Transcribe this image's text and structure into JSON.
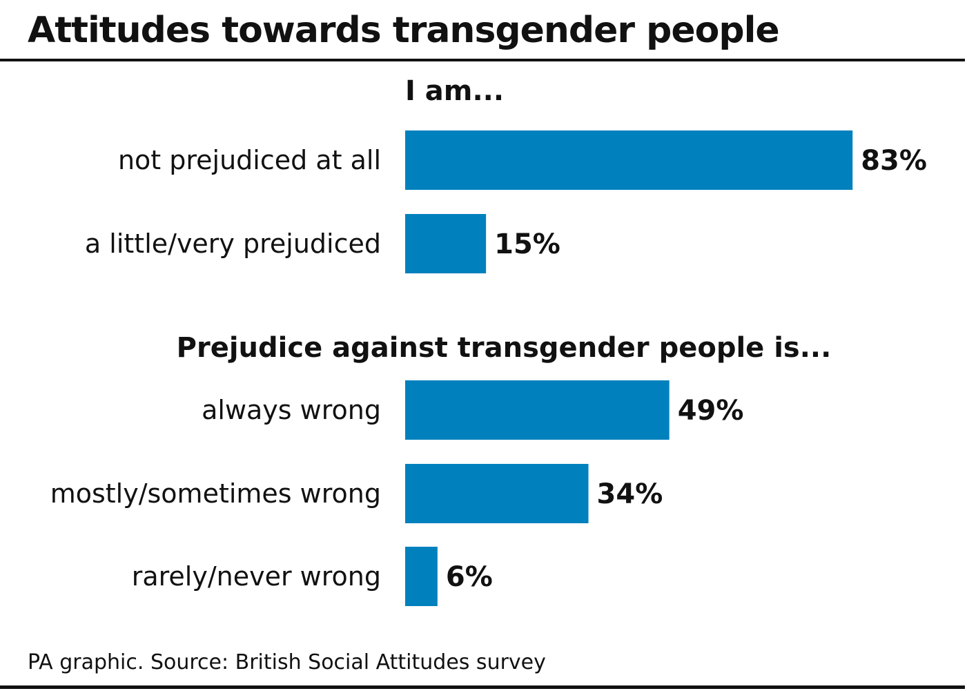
{
  "title": "Attitudes towards transgender people",
  "source": "PA graphic. Source: British Social Attitudes survey",
  "colors": {
    "bar": "#0081BD",
    "text": "#111111",
    "rule": "#111111"
  },
  "chart_data": [
    {
      "type": "bar",
      "orientation": "horizontal",
      "title": "I am...",
      "categories": [
        "not prejudiced at all",
        "a little/very prejudiced"
      ],
      "values": [
        83,
        15
      ],
      "value_labels": [
        "83%",
        "15%"
      ],
      "unit": "%",
      "xlim": [
        0,
        100
      ],
      "grid": false
    },
    {
      "type": "bar",
      "orientation": "horizontal",
      "title": "Prejudice against transgender people is...",
      "categories": [
        "always wrong",
        "mostly/sometimes wrong",
        "rarely/never wrong"
      ],
      "values": [
        49,
        34,
        6
      ],
      "value_labels": [
        "49%",
        "34%",
        "6%"
      ],
      "unit": "%",
      "xlim": [
        0,
        100
      ],
      "grid": false
    }
  ]
}
